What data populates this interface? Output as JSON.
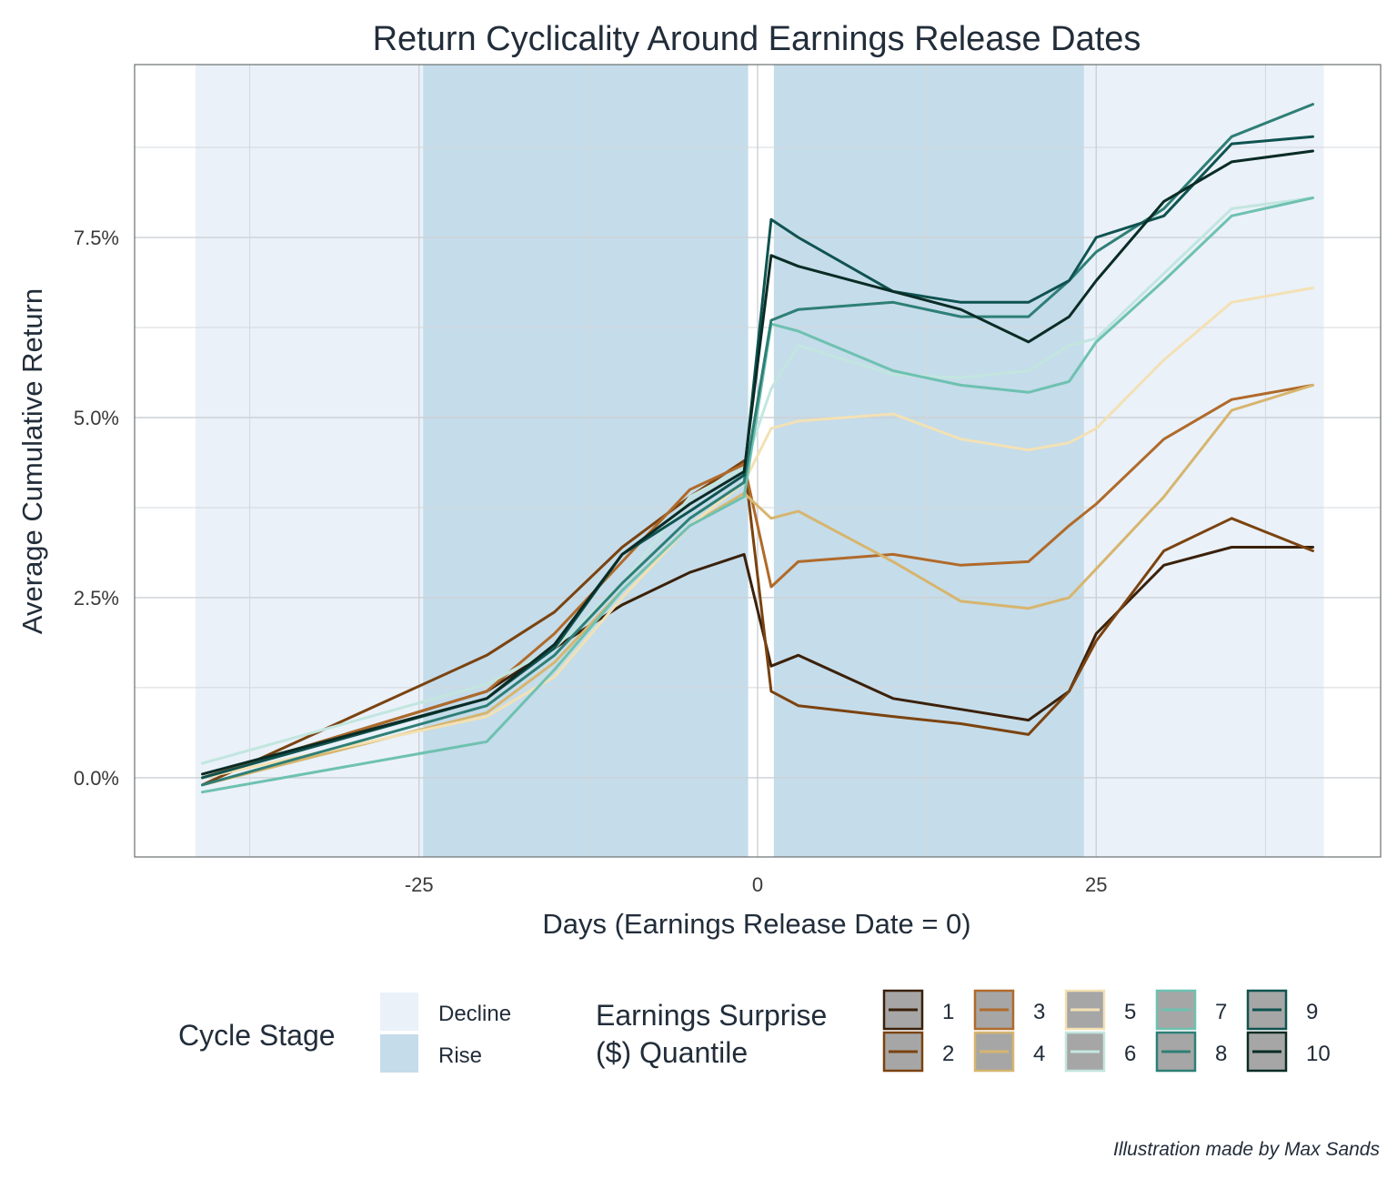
{
  "chart_data": {
    "type": "line",
    "title": "Return Cyclicality Around Earnings Release Dates",
    "xlabel": "Days (Earnings Release Date = 0)",
    "ylabel": "Average Cumulative Return",
    "xlim": [
      -46,
      46
    ],
    "ylim": [
      -1.1,
      9.9
    ],
    "x_ticks": [
      -25,
      0,
      25
    ],
    "x_tick_labels": [
      "-25",
      "0",
      "25"
    ],
    "y_ticks": [
      0,
      2.5,
      5,
      7.5
    ],
    "y_tick_labels": [
      "0.0%",
      "2.5%",
      "5.0%",
      "7.5%"
    ],
    "grid": true,
    "cycle_stages": [
      {
        "stage": "Decline",
        "x0": -41.5,
        "x1": -24.7
      },
      {
        "stage": "Rise",
        "x0": -24.7,
        "x1": -0.7
      },
      {
        "stage": "Rise",
        "x0": 1.2,
        "x1": 24.1
      },
      {
        "stage": "Decline",
        "x0": 24.1,
        "x1": 41.8
      }
    ],
    "stage_legend": {
      "title": "Cycle Stage",
      "items": [
        {
          "label": "Decline",
          "color": "#eaf1f9"
        },
        {
          "label": "Rise",
          "color": "#c5dcea"
        }
      ]
    },
    "series_legend": {
      "title_lines": [
        "Earnings Surprise",
        "($) Quantile"
      ]
    },
    "x_points": [
      -41,
      -20,
      -15,
      -10,
      -5,
      -1,
      1,
      3,
      10,
      15,
      20,
      23,
      25,
      30,
      35,
      41
    ],
    "series": [
      {
        "name": "1",
        "color": "#3a210a",
        "values": [
          0.0,
          1.2,
          1.8,
          2.4,
          2.85,
          3.1,
          1.55,
          1.7,
          1.1,
          0.95,
          0.8,
          1.2,
          2.0,
          2.95,
          3.2,
          3.2
        ]
      },
      {
        "name": "2",
        "color": "#7b4310",
        "values": [
          -0.1,
          1.7,
          2.3,
          3.2,
          3.9,
          4.4,
          1.2,
          1.0,
          0.85,
          0.75,
          0.6,
          1.2,
          1.9,
          3.15,
          3.6,
          3.15
        ]
      },
      {
        "name": "3",
        "color": "#b06a2a",
        "values": [
          0.0,
          1.2,
          2.0,
          3.0,
          4.0,
          4.35,
          2.65,
          3.0,
          3.1,
          2.95,
          3.0,
          3.5,
          3.8,
          4.7,
          5.25,
          5.45
        ]
      },
      {
        "name": "4",
        "color": "#d7b56e",
        "values": [
          -0.1,
          0.9,
          1.6,
          2.6,
          3.5,
          3.95,
          3.6,
          3.7,
          3.0,
          2.45,
          2.35,
          2.5,
          2.9,
          3.9,
          5.1,
          5.45
        ]
      },
      {
        "name": "5",
        "color": "#f3e1b4",
        "values": [
          0.0,
          0.85,
          1.4,
          2.5,
          3.5,
          4.1,
          4.85,
          4.95,
          5.05,
          4.7,
          4.55,
          4.65,
          4.85,
          5.8,
          6.6,
          6.8
        ]
      },
      {
        "name": "6",
        "color": "#c2e6df",
        "values": [
          0.2,
          1.3,
          1.8,
          2.7,
          3.9,
          4.3,
          5.4,
          6.0,
          5.6,
          5.55,
          5.65,
          6.0,
          6.1,
          7.0,
          7.9,
          8.05
        ]
      },
      {
        "name": "7",
        "color": "#6ec1b1",
        "values": [
          -0.2,
          0.5,
          1.5,
          2.6,
          3.5,
          3.9,
          6.3,
          6.2,
          5.65,
          5.45,
          5.35,
          5.5,
          6.05,
          6.9,
          7.8,
          8.05
        ]
      },
      {
        "name": "8",
        "color": "#2e7f76",
        "values": [
          -0.1,
          1.0,
          1.7,
          2.7,
          3.6,
          4.1,
          6.35,
          6.5,
          6.6,
          6.4,
          6.4,
          6.9,
          7.3,
          7.9,
          8.9,
          9.35
        ]
      },
      {
        "name": "9",
        "color": "#0f5350",
        "values": [
          0.0,
          1.1,
          1.8,
          3.1,
          3.7,
          4.2,
          7.75,
          7.5,
          6.75,
          6.6,
          6.6,
          6.9,
          7.5,
          7.8,
          8.8,
          8.9
        ]
      },
      {
        "name": "10",
        "color": "#0a2c25",
        "values": [
          0.05,
          1.1,
          1.85,
          3.1,
          3.8,
          4.25,
          7.25,
          7.1,
          6.75,
          6.5,
          6.05,
          6.4,
          6.9,
          8.0,
          8.55,
          8.7
        ]
      }
    ],
    "caption": "Illustration made by Max Sands"
  }
}
